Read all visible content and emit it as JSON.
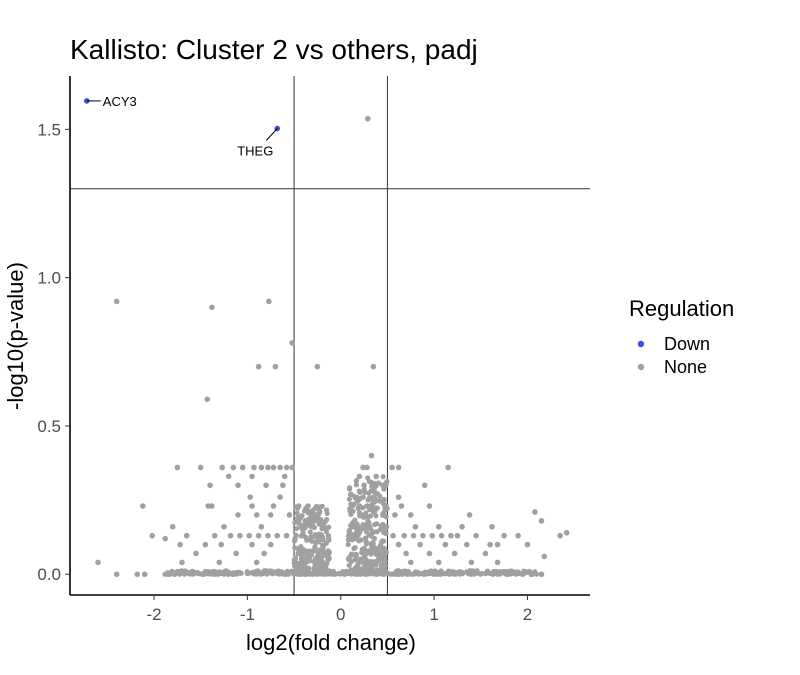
{
  "chart_data": {
    "type": "scatter",
    "title": "Kallisto: Cluster 2 vs others, padj",
    "xlabel": "log2(fold change)",
    "ylabel": "-log10(p-value)",
    "xlim": [
      -2.9,
      2.67
    ],
    "ylim": [
      -0.07,
      1.68
    ],
    "x_ticks": [
      -2,
      -1,
      0,
      1,
      2
    ],
    "x_tick_labels": [
      "-2",
      "-1",
      "0",
      "1",
      "2"
    ],
    "y_ticks": [
      0.0,
      0.5,
      1.0,
      1.5
    ],
    "y_tick_labels": [
      "0.0",
      "0.5",
      "1.0",
      "1.5"
    ],
    "threshold_lines": {
      "vertical": [
        -0.5,
        0.5
      ],
      "horizontal": [
        1.3
      ]
    },
    "grid": false,
    "legend": {
      "title": "Regulation",
      "position": "right",
      "entries": [
        {
          "label": "Down",
          "color": "#3b4ee0"
        },
        {
          "label": "None",
          "color": "#a0a0a0"
        }
      ]
    },
    "series": [
      {
        "name": "Down",
        "color": "#3b4ee0",
        "points": [
          {
            "x": -2.72,
            "y": 1.596
          },
          {
            "x": -0.68,
            "y": 1.503
          }
        ]
      },
      {
        "name": "None",
        "color": "#a0a0a0",
        "points": [
          {
            "x": 0.29,
            "y": 1.536
          },
          {
            "x": -2.4,
            "y": 0.92
          },
          {
            "x": -1.38,
            "y": 0.9
          },
          {
            "x": -0.77,
            "y": 0.92
          },
          {
            "x": -0.52,
            "y": 0.78
          },
          {
            "x": -0.88,
            "y": 0.7
          },
          {
            "x": -0.7,
            "y": 0.7
          },
          {
            "x": -0.25,
            "y": 0.7
          },
          {
            "x": 0.35,
            "y": 0.7
          },
          {
            "x": -1.43,
            "y": 0.59
          },
          {
            "x": 0.33,
            "y": 0.4
          },
          {
            "x": -1.75,
            "y": 0.36
          },
          {
            "x": -1.5,
            "y": 0.36
          },
          {
            "x": -1.27,
            "y": 0.36
          },
          {
            "x": -1.15,
            "y": 0.36
          },
          {
            "x": -1.05,
            "y": 0.36
          },
          {
            "x": -0.93,
            "y": 0.36
          },
          {
            "x": -0.85,
            "y": 0.36
          },
          {
            "x": -0.78,
            "y": 0.36
          },
          {
            "x": -0.72,
            "y": 0.36
          },
          {
            "x": -0.65,
            "y": 0.36
          },
          {
            "x": -0.58,
            "y": 0.36
          },
          {
            "x": -0.52,
            "y": 0.36
          },
          {
            "x": 0.24,
            "y": 0.36
          },
          {
            "x": 0.28,
            "y": 0.36
          },
          {
            "x": 0.55,
            "y": 0.36
          },
          {
            "x": 0.62,
            "y": 0.36
          },
          {
            "x": 1.15,
            "y": 0.36
          },
          {
            "x": -1.2,
            "y": 0.33
          },
          {
            "x": -0.95,
            "y": 0.33
          },
          {
            "x": -0.6,
            "y": 0.33
          },
          {
            "x": 0.2,
            "y": 0.33
          },
          {
            "x": 0.38,
            "y": 0.33
          },
          {
            "x": -1.4,
            "y": 0.3
          },
          {
            "x": -1.1,
            "y": 0.3
          },
          {
            "x": -0.8,
            "y": 0.3
          },
          {
            "x": -0.62,
            "y": 0.3
          },
          {
            "x": 0.25,
            "y": 0.3
          },
          {
            "x": 0.45,
            "y": 0.3
          },
          {
            "x": 0.9,
            "y": 0.3
          },
          {
            "x": -0.97,
            "y": 0.26
          },
          {
            "x": -0.65,
            "y": 0.26
          },
          {
            "x": 0.35,
            "y": 0.26
          },
          {
            "x": 0.62,
            "y": 0.26
          },
          {
            "x": -1.42,
            "y": 0.23
          },
          {
            "x": -1.38,
            "y": 0.23
          },
          {
            "x": -0.95,
            "y": 0.23
          },
          {
            "x": -0.72,
            "y": 0.23
          },
          {
            "x": -0.45,
            "y": 0.23
          },
          {
            "x": -0.35,
            "y": 0.23
          },
          {
            "x": 0.2,
            "y": 0.23
          },
          {
            "x": 0.28,
            "y": 0.23
          },
          {
            "x": 0.65,
            "y": 0.23
          },
          {
            "x": 0.95,
            "y": 0.23
          },
          {
            "x": -2.12,
            "y": 0.23
          },
          {
            "x": -1.1,
            "y": 0.2
          },
          {
            "x": -0.9,
            "y": 0.2
          },
          {
            "x": -0.75,
            "y": 0.2
          },
          {
            "x": -0.55,
            "y": 0.2
          },
          {
            "x": 0.22,
            "y": 0.2
          },
          {
            "x": 0.58,
            "y": 0.2
          },
          {
            "x": 0.75,
            "y": 0.2
          },
          {
            "x": 1.38,
            "y": 0.2
          },
          {
            "x": 2.08,
            "y": 0.21
          },
          {
            "x": 2.15,
            "y": 0.18
          },
          {
            "x": -1.8,
            "y": 0.16
          },
          {
            "x": -1.25,
            "y": 0.16
          },
          {
            "x": -0.85,
            "y": 0.16
          },
          {
            "x": -0.3,
            "y": 0.16
          },
          {
            "x": 0.12,
            "y": 0.16
          },
          {
            "x": 0.48,
            "y": 0.16
          },
          {
            "x": 0.8,
            "y": 0.16
          },
          {
            "x": 1.05,
            "y": 0.16
          },
          {
            "x": 1.3,
            "y": 0.16
          },
          {
            "x": 1.62,
            "y": 0.16
          },
          {
            "x": -2.02,
            "y": 0.13
          },
          {
            "x": -1.88,
            "y": 0.12
          },
          {
            "x": -1.65,
            "y": 0.13
          },
          {
            "x": -1.35,
            "y": 0.13
          },
          {
            "x": -1.18,
            "y": 0.13
          },
          {
            "x": -1.08,
            "y": 0.13
          },
          {
            "x": -0.98,
            "y": 0.13
          },
          {
            "x": -0.88,
            "y": 0.13
          },
          {
            "x": -0.78,
            "y": 0.13
          },
          {
            "x": -0.68,
            "y": 0.13
          },
          {
            "x": -0.58,
            "y": 0.13
          },
          {
            "x": 0.56,
            "y": 0.13
          },
          {
            "x": 0.68,
            "y": 0.13
          },
          {
            "x": 0.78,
            "y": 0.13
          },
          {
            "x": 0.88,
            "y": 0.13
          },
          {
            "x": 0.98,
            "y": 0.13
          },
          {
            "x": 1.08,
            "y": 0.13
          },
          {
            "x": 1.18,
            "y": 0.13
          },
          {
            "x": 1.25,
            "y": 0.13
          },
          {
            "x": 1.45,
            "y": 0.13
          },
          {
            "x": 1.75,
            "y": 0.13
          },
          {
            "x": 1.9,
            "y": 0.13
          },
          {
            "x": 2.35,
            "y": 0.13
          },
          {
            "x": 2.42,
            "y": 0.14
          },
          {
            "x": -1.72,
            "y": 0.1
          },
          {
            "x": -1.45,
            "y": 0.1
          },
          {
            "x": -1.28,
            "y": 0.1
          },
          {
            "x": -0.95,
            "y": 0.1
          },
          {
            "x": -0.75,
            "y": 0.1
          },
          {
            "x": 0.62,
            "y": 0.1
          },
          {
            "x": 0.85,
            "y": 0.1
          },
          {
            "x": 1.12,
            "y": 0.1
          },
          {
            "x": 1.35,
            "y": 0.1
          },
          {
            "x": 1.6,
            "y": 0.1
          },
          {
            "x": 1.68,
            "y": 0.1
          },
          {
            "x": 2.0,
            "y": 0.1
          },
          {
            "x": -1.55,
            "y": 0.07
          },
          {
            "x": -1.12,
            "y": 0.07
          },
          {
            "x": -0.82,
            "y": 0.07
          },
          {
            "x": 0.7,
            "y": 0.07
          },
          {
            "x": 0.95,
            "y": 0.07
          },
          {
            "x": 1.22,
            "y": 0.07
          },
          {
            "x": 1.55,
            "y": 0.07
          },
          {
            "x": 2.18,
            "y": 0.06
          },
          {
            "x": -2.6,
            "y": 0.04
          },
          {
            "x": -1.7,
            "y": 0.04
          },
          {
            "x": -1.3,
            "y": 0.04
          },
          {
            "x": -0.9,
            "y": 0.04
          },
          {
            "x": 0.75,
            "y": 0.04
          },
          {
            "x": 1.05,
            "y": 0.04
          },
          {
            "x": 1.4,
            "y": 0.04
          },
          {
            "x": 1.68,
            "y": 0.04
          },
          {
            "x": -2.4,
            "y": 0.0
          },
          {
            "x": -2.18,
            "y": 0.0
          },
          {
            "x": -2.1,
            "y": 0.0
          },
          {
            "x": -1.85,
            "y": 0.0
          },
          {
            "x": -1.78,
            "y": 0.0
          },
          {
            "x": 1.78,
            "y": 0.0
          },
          {
            "x": 1.95,
            "y": 0.0
          },
          {
            "x": 2.05,
            "y": 0.0
          },
          {
            "x": 2.15,
            "y": 0.0
          }
        ]
      }
    ],
    "dense_clusters": [
      {
        "x_min": -0.5,
        "x_max": -0.12,
        "y_min": 0.0,
        "y_max": 0.23,
        "count": 260,
        "color": "#a0a0a0"
      },
      {
        "x_min": 0.08,
        "x_max": 0.5,
        "y_min": 0.0,
        "y_max": 0.33,
        "count": 300,
        "color": "#a0a0a0"
      },
      {
        "x_min": -1.9,
        "x_max": 2.1,
        "y_min": 0.0,
        "y_max": 0.012,
        "count": 380,
        "color": "#a0a0a0"
      }
    ],
    "annotations": [
      {
        "label": "ACY3",
        "x": -2.72,
        "y": 1.596
      },
      {
        "label": "THEG",
        "x": -0.68,
        "y": 1.503
      }
    ]
  }
}
